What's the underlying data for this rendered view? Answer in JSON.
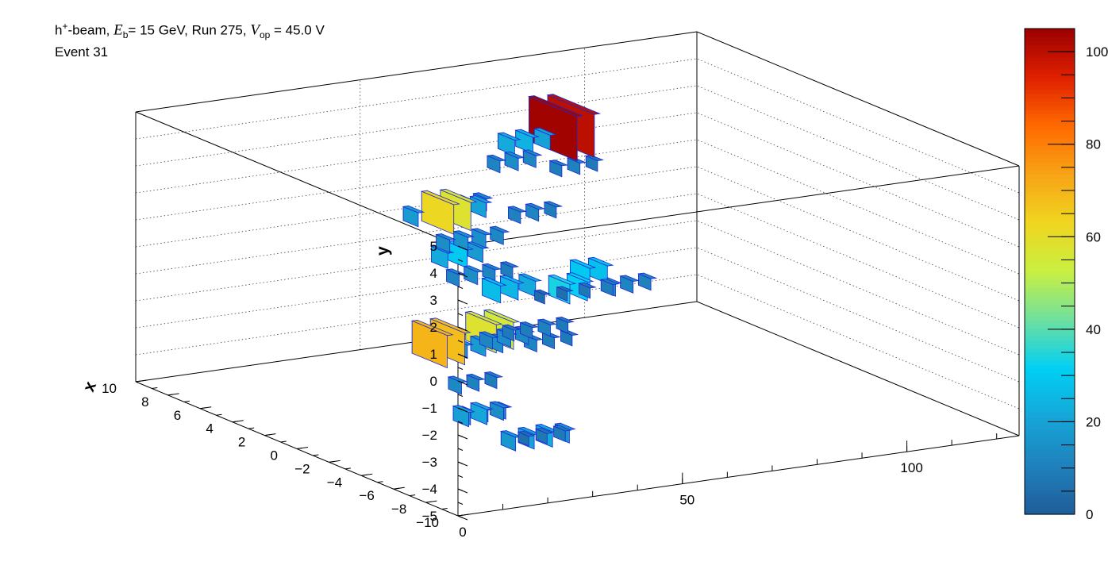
{
  "header": {
    "title_particle": "h",
    "title_particle_sup": "+",
    "title_beam": "-beam, ",
    "title_E": "E",
    "title_E_sub": "b",
    "title_energy": "= 15 GeV, Run 275, ",
    "title_V": "V",
    "title_V_sub": "op",
    "title_voltage": " = 45.0 V",
    "event_label": "Event 31"
  },
  "chart_data": {
    "type": "lego3d",
    "axes": {
      "x": {
        "label": "x",
        "range": [
          -10,
          10
        ],
        "ticks": [
          -10,
          -8,
          -6,
          -4,
          -2,
          0,
          2,
          4,
          6,
          8,
          10
        ],
        "tick_labels": [
          "−10",
          "−8",
          "−6",
          "−4",
          "−2",
          "0",
          "2",
          "4",
          "6",
          "8",
          "10"
        ]
      },
      "y": {
        "label": "y",
        "range": [
          -5,
          5
        ],
        "ticks": [
          -5,
          -4,
          -3,
          -2,
          -1,
          0,
          1,
          2,
          3,
          4,
          5
        ],
        "tick_labels": [
          "−5",
          "−4",
          "−3",
          "−2",
          "−1",
          "0",
          "1",
          "2",
          "3",
          "4",
          "5"
        ]
      },
      "z": {
        "label": "",
        "range": [
          0,
          125
        ],
        "ticks": [
          0,
          50,
          100
        ],
        "tick_labels": [
          "0",
          "50",
          "100"
        ]
      }
    },
    "colorbar": {
      "range": [
        0,
        105
      ],
      "ticks": [
        0,
        20,
        40,
        60,
        80,
        100
      ],
      "tick_labels": [
        "0",
        "20",
        "40",
        "60",
        "80",
        "100"
      ],
      "palette": [
        "#1f5c98",
        "#1f80bc",
        "#16a6d8",
        "#00cff4",
        "#6ee0a0",
        "#c8ef42",
        "#f0d620",
        "#f7a416",
        "#ff6a00",
        "#e02000",
        "#9a0000"
      ]
    },
    "grid": true,
    "note": "Energy deposits per cell: [x, y, z, energy]",
    "cells": [
      [
        -9.5,
        2.5,
        20,
        5
      ],
      [
        -9.5,
        2.5,
        25,
        6
      ],
      [
        -9.5,
        2.5,
        30,
        8
      ],
      [
        -9.5,
        2.5,
        35,
        10
      ],
      [
        -6.5,
        2.0,
        20,
        27
      ],
      [
        -6.5,
        2.0,
        24,
        25
      ],
      [
        -6.5,
        2.0,
        28,
        22
      ],
      [
        -7.0,
        0.5,
        22,
        9
      ],
      [
        -7.0,
        0.5,
        26,
        10
      ],
      [
        -7.0,
        0.5,
        30,
        11
      ],
      [
        -7.0,
        0.5,
        34,
        9
      ],
      [
        -3.5,
        3.0,
        20,
        14
      ],
      [
        -3.5,
        3.0,
        24,
        16
      ],
      [
        -3.5,
        3.0,
        28,
        15
      ],
      [
        -3.5,
        3.0,
        32,
        13
      ],
      [
        -1.5,
        3.5,
        20,
        18
      ],
      [
        -1.5,
        3.5,
        26,
        62
      ],
      [
        -1.5,
        3.5,
        30,
        58
      ],
      [
        -1.5,
        3.5,
        35,
        20
      ],
      [
        -3.0,
        1.5,
        24,
        12
      ],
      [
        -3.0,
        1.5,
        28,
        14
      ],
      [
        -3.0,
        1.5,
        32,
        12
      ],
      [
        -3.0,
        1.5,
        36,
        10
      ],
      [
        -0.5,
        1.5,
        30,
        22
      ],
      [
        -0.5,
        1.5,
        34,
        30
      ],
      [
        -0.5,
        1.5,
        38,
        18
      ],
      [
        -4.5,
        -0.5,
        26,
        12
      ],
      [
        -4.5,
        -0.5,
        30,
        14
      ],
      [
        -4.5,
        -0.5,
        34,
        13
      ],
      [
        -8.5,
        -3.0,
        20,
        6
      ],
      [
        -8.5,
        -3.0,
        24,
        8
      ],
      [
        -8.5,
        -3.0,
        28,
        9
      ],
      [
        -7.0,
        -3.5,
        22,
        17
      ],
      [
        -7.0,
        -3.5,
        26,
        20
      ],
      [
        -7.0,
        -3.5,
        30,
        22
      ],
      [
        -7.0,
        -3.5,
        34,
        16
      ],
      [
        -3.5,
        -3.5,
        24,
        19
      ],
      [
        -3.5,
        -3.5,
        28,
        21
      ],
      [
        -3.5,
        -3.5,
        32,
        14
      ],
      [
        -1.0,
        -1.5,
        26,
        70
      ],
      [
        -1.0,
        -1.5,
        30,
        68
      ],
      [
        -2.0,
        -4.0,
        30,
        14
      ],
      [
        -2.0,
        -4.0,
        34,
        12
      ],
      [
        -2.0,
        -4.0,
        38,
        11
      ],
      [
        1.0,
        -2.5,
        40,
        16
      ],
      [
        1.0,
        -2.5,
        44,
        18
      ],
      [
        1.0,
        -2.5,
        48,
        14
      ],
      [
        2.5,
        -2.5,
        50,
        58
      ],
      [
        2.5,
        -2.5,
        54,
        55
      ],
      [
        3.0,
        -4.5,
        46,
        13
      ],
      [
        3.0,
        -4.5,
        50,
        11
      ],
      [
        3.0,
        -4.5,
        54,
        10
      ],
      [
        2.0,
        2.5,
        40,
        12
      ],
      [
        2.0,
        2.5,
        44,
        14
      ],
      [
        2.0,
        2.5,
        48,
        13
      ],
      [
        4.5,
        3.0,
        60,
        12
      ],
      [
        4.5,
        3.0,
        64,
        14
      ],
      [
        4.5,
        3.0,
        68,
        12
      ],
      [
        6.5,
        3.0,
        70,
        22
      ],
      [
        6.5,
        3.0,
        74,
        24
      ],
      [
        6.5,
        3.0,
        78,
        20
      ],
      [
        7.5,
        3.0,
        84,
        104
      ],
      [
        7.5,
        3.0,
        88,
        100
      ],
      [
        6.0,
        0.5,
        70,
        11
      ],
      [
        6.0,
        0.5,
        74,
        12
      ],
      [
        6.0,
        0.5,
        78,
        10
      ],
      [
        9.0,
        1.0,
        90,
        10
      ],
      [
        9.0,
        1.0,
        94,
        11
      ],
      [
        9.0,
        1.0,
        98,
        9
      ],
      [
        6.0,
        -2.5,
        80,
        34
      ],
      [
        6.0,
        -2.5,
        84,
        32
      ],
      [
        7.5,
        -2.5,
        90,
        30
      ],
      [
        7.5,
        -2.5,
        94,
        28
      ],
      [
        5.0,
        -4.0,
        70,
        12
      ],
      [
        5.0,
        -4.0,
        74,
        10
      ],
      [
        5.0,
        -4.0,
        78,
        9
      ],
      [
        8.5,
        -3.5,
        100,
        14
      ],
      [
        8.5,
        -3.5,
        104,
        12
      ],
      [
        8.5,
        -3.5,
        108,
        11
      ]
    ]
  }
}
